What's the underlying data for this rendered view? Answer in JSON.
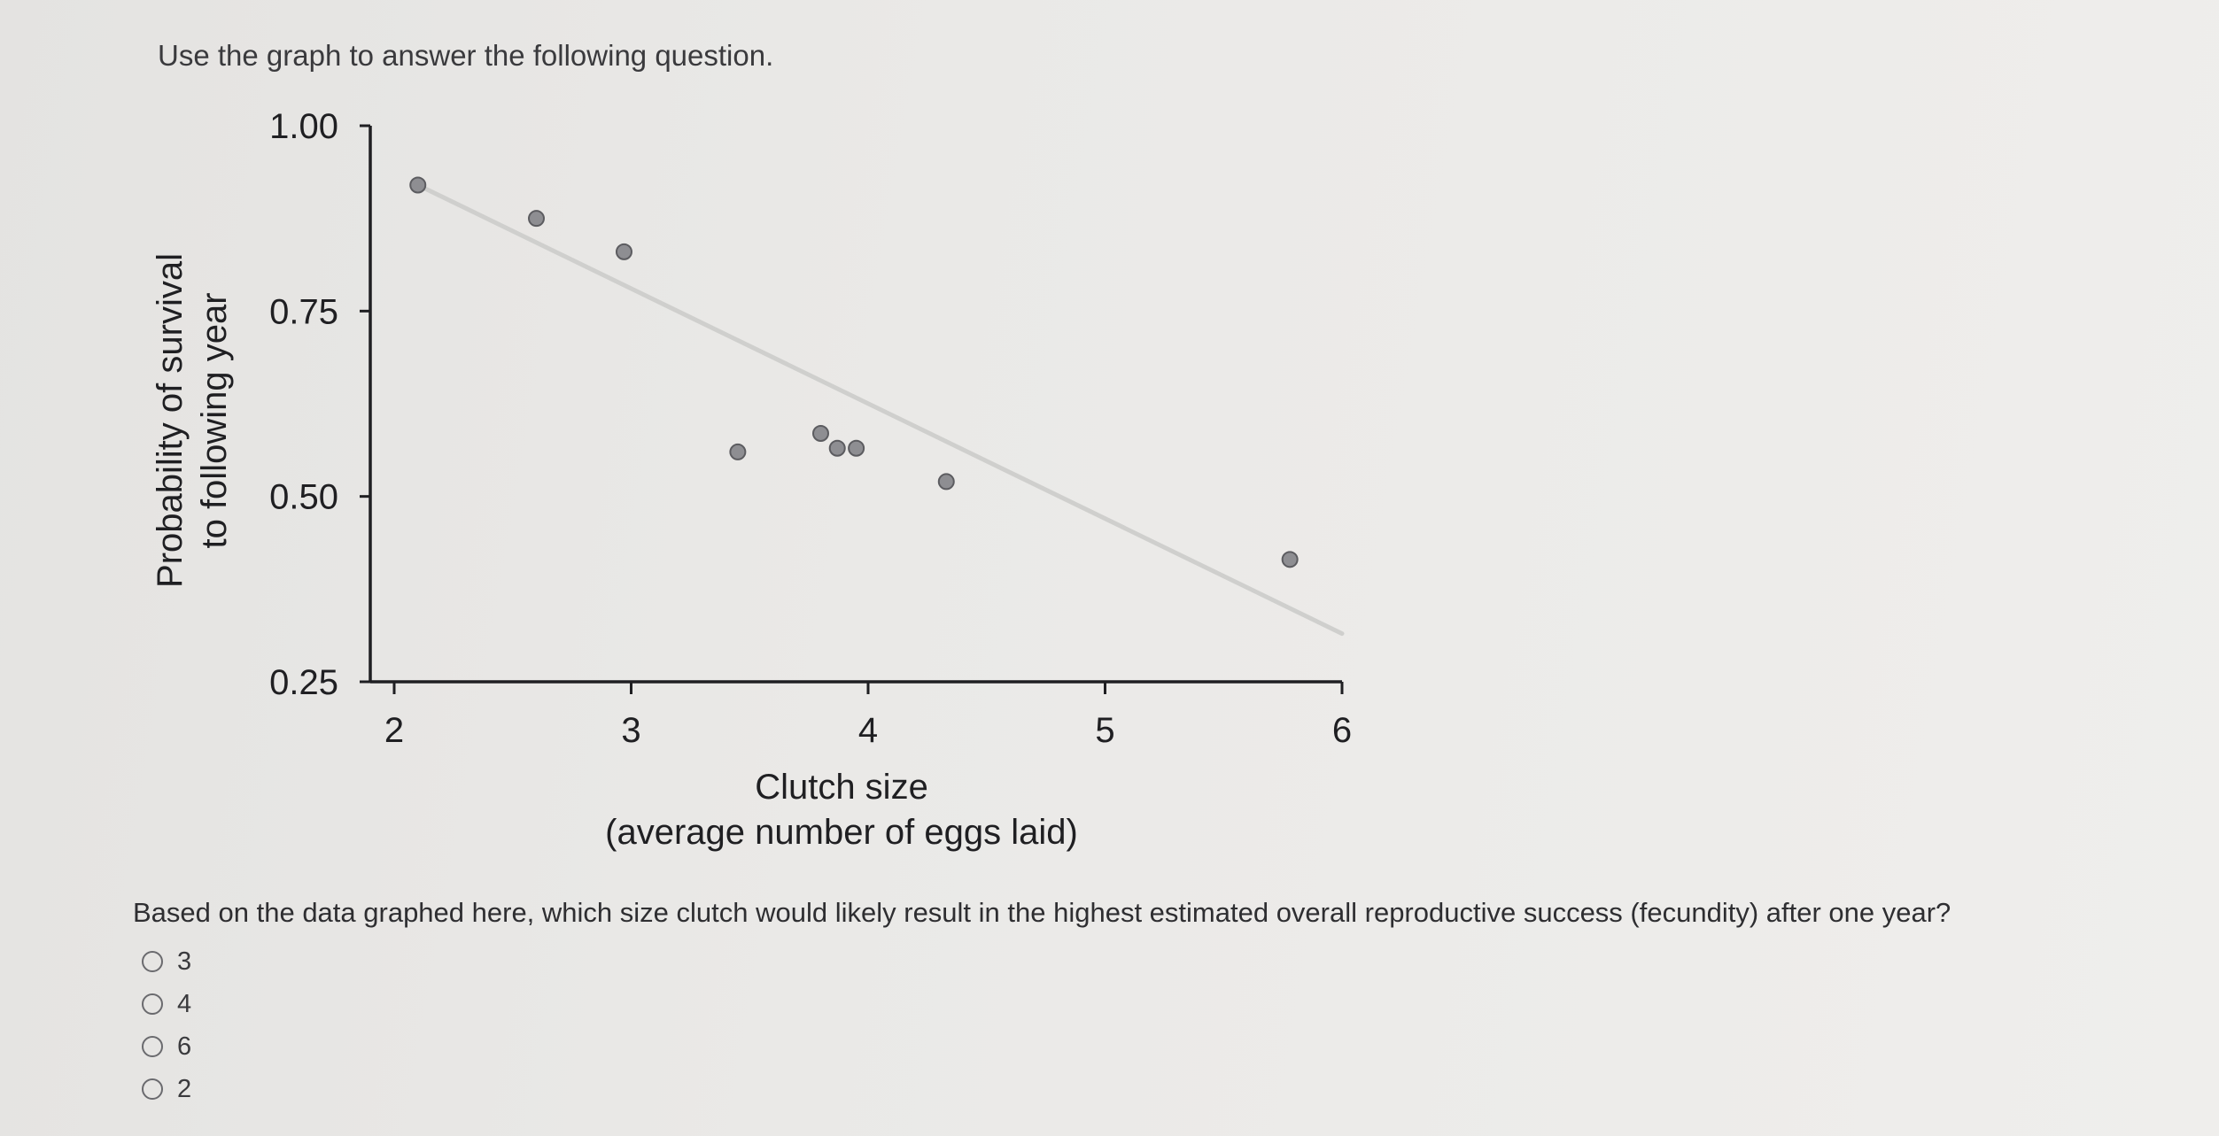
{
  "instruction": "Use the graph to answer the following question.",
  "chart_data": {
    "type": "scatter",
    "xlabel": [
      "Clutch size",
      "(average number of eggs laid)"
    ],
    "ylabel": [
      "Probability of survival",
      "to following year"
    ],
    "x_ticks": [
      "2",
      "3",
      "4",
      "5",
      "6"
    ],
    "y_ticks": [
      "0.25",
      "0.50",
      "0.75",
      "1.00"
    ],
    "xlim": [
      2,
      6
    ],
    "ylim": [
      0.25,
      1.0
    ],
    "grid": false,
    "points": [
      {
        "x": 2.1,
        "y": 0.92
      },
      {
        "x": 2.6,
        "y": 0.875
      },
      {
        "x": 2.97,
        "y": 0.83
      },
      {
        "x": 3.45,
        "y": 0.56
      },
      {
        "x": 3.8,
        "y": 0.585
      },
      {
        "x": 3.87,
        "y": 0.565
      },
      {
        "x": 3.95,
        "y": 0.565
      },
      {
        "x": 4.33,
        "y": 0.52
      },
      {
        "x": 5.78,
        "y": 0.415
      }
    ],
    "trendline": {
      "x": [
        2.1,
        6
      ],
      "y": [
        0.92,
        0.315
      ]
    }
  },
  "question": {
    "text": "Based on the data graphed here, which size clutch would likely result in the highest estimated overall reproductive success (fecundity) after one year?",
    "options": [
      "3",
      "4",
      "6",
      "2"
    ]
  },
  "colors": {
    "axis": "#1f1f22",
    "point_fill": "#8e8e92",
    "point_stroke": "#5c5c60",
    "trendline": "#cfcfcd",
    "radio": "#6a6a6e"
  }
}
